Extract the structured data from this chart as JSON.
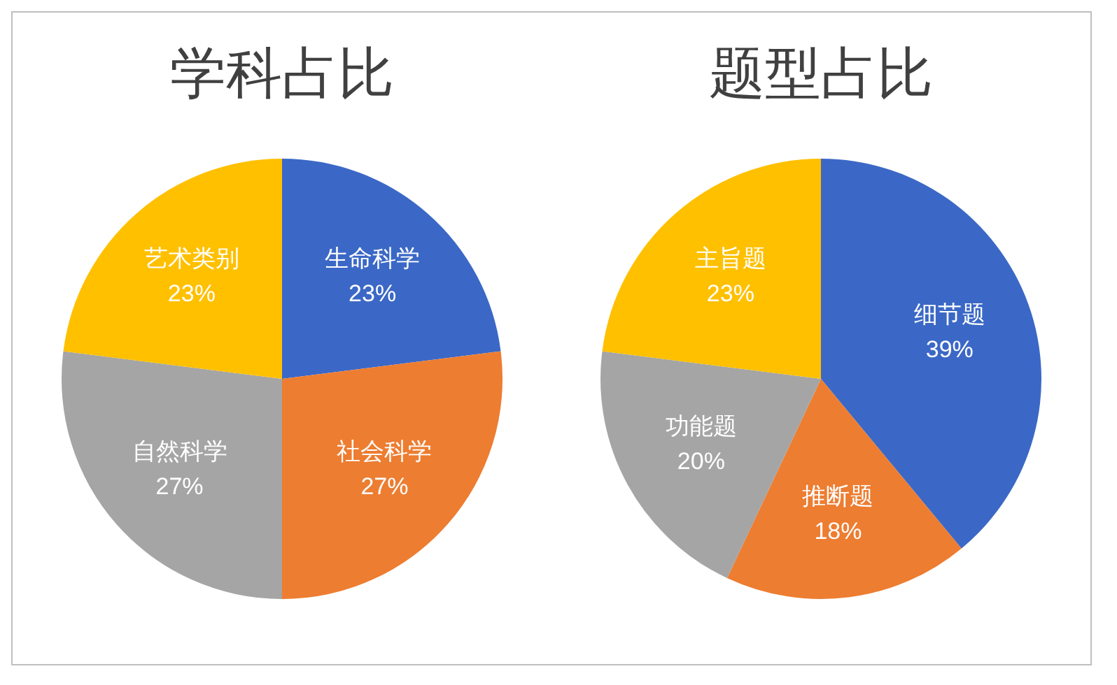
{
  "chart_data": [
    {
      "type": "pie",
      "title": "学科占比",
      "categories": [
        "生命科学",
        "社会科学",
        "自然科学",
        "艺术类别"
      ],
      "values": [
        23,
        27,
        27,
        23
      ],
      "value_labels": [
        "23%",
        "27%",
        "27%",
        "23%"
      ],
      "colors": [
        "#3b68c6",
        "#ed7d31",
        "#a5a5a5",
        "#ffc000"
      ],
      "legend": false
    },
    {
      "type": "pie",
      "title": "题型占比",
      "categories": [
        "细节题",
        "推断题",
        "功能题",
        "主旨题"
      ],
      "values": [
        39,
        18,
        20,
        23
      ],
      "value_labels": [
        "39%",
        "18%",
        "20%",
        "23%"
      ],
      "colors": [
        "#3b68c6",
        "#ed7d31",
        "#a5a5a5",
        "#ffc000"
      ],
      "legend": false
    }
  ]
}
